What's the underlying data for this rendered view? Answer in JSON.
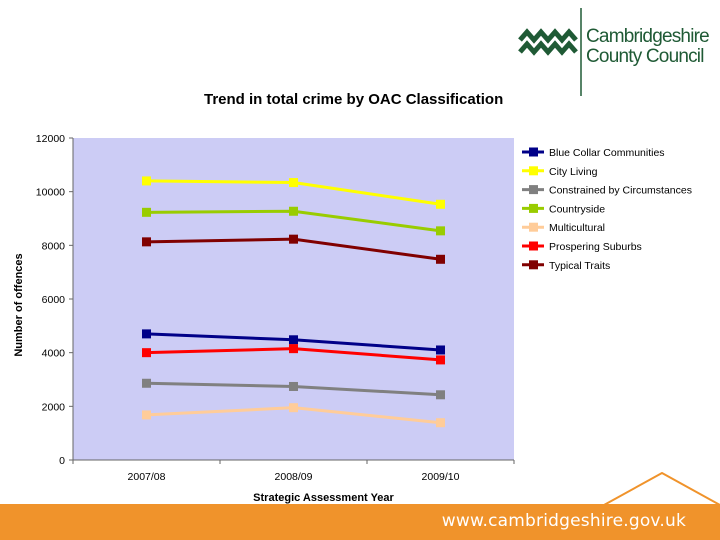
{
  "branding": {
    "org_line1": "Cambridgeshire",
    "org_line2": "County Council",
    "footer_url": "www.cambridgeshire.gov.uk",
    "accent_orange": "#f0932b",
    "logo_green": "#1f5a35"
  },
  "chart_data": {
    "type": "line",
    "title": "Trend in total crime by OAC Classification",
    "xlabel": "Strategic Assessment Year",
    "ylabel": "Number of offences",
    "categories": [
      "2007/08",
      "2008/09",
      "2009/10"
    ],
    "ylim": [
      0,
      12000
    ],
    "yticks": [
      0,
      2000,
      4000,
      6000,
      8000,
      10000,
      12000
    ],
    "grid": false,
    "plot_background": "#ccccf5",
    "legend_position": "right",
    "series": [
      {
        "name": "Blue Collar Communities",
        "color": "#000088",
        "values": [
          4700,
          4480,
          4100
        ]
      },
      {
        "name": "City Living",
        "color": "#ffff00",
        "values": [
          10400,
          10340,
          9530
        ]
      },
      {
        "name": "Constrained by Circumstances",
        "color": "#808080",
        "values": [
          2860,
          2740,
          2430
        ]
      },
      {
        "name": "Countryside",
        "color": "#99cc00",
        "values": [
          9230,
          9270,
          8540
        ]
      },
      {
        "name": "Multicultural",
        "color": "#ffcc99",
        "values": [
          1680,
          1950,
          1390
        ]
      },
      {
        "name": "Prospering Suburbs",
        "color": "#ff0000",
        "values": [
          4000,
          4150,
          3730
        ]
      },
      {
        "name": "Typical Traits",
        "color": "#800000",
        "values": [
          8130,
          8230,
          7480
        ]
      }
    ]
  }
}
